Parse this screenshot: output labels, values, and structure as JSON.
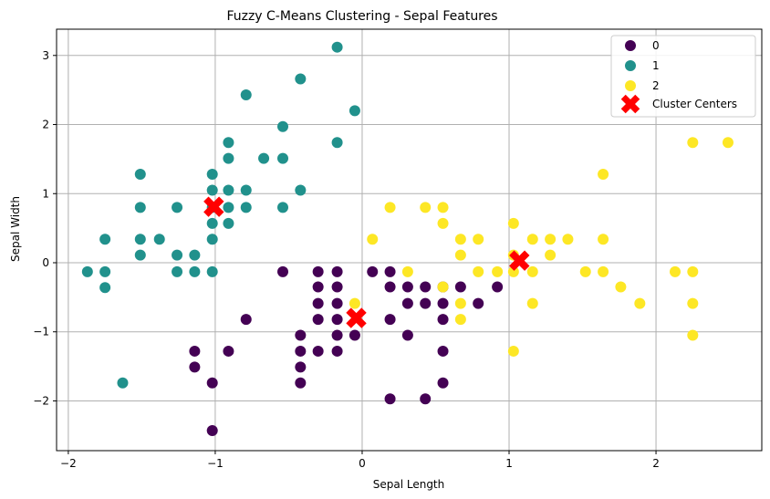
{
  "chart_data": {
    "type": "scatter",
    "title": "Fuzzy C-Means Clustering - Sepal Features",
    "xlabel": "Sepal Length",
    "ylabel": "Sepal Width",
    "xlim": [
      -2.08,
      2.72
    ],
    "ylim": [
      -2.72,
      3.38
    ],
    "x_ticks": [
      -2,
      -1,
      0,
      1,
      2
    ],
    "y_ticks": [
      -2,
      -1,
      0,
      1,
      2,
      3
    ],
    "tick_labels_x": [
      "−2",
      "−1",
      "0",
      "1",
      "2"
    ],
    "tick_labels_y": [
      "−2",
      "−1",
      "0",
      "1",
      "2",
      "3"
    ],
    "grid": true,
    "legend_position": "top-right",
    "series": [
      {
        "name": "0",
        "color": "#440154",
        "points": [
          [
            -0.54,
            -0.13
          ],
          [
            -0.3,
            -0.13
          ],
          [
            -0.17,
            -0.13
          ],
          [
            0.07,
            -0.13
          ],
          [
            0.19,
            -0.13
          ],
          [
            -0.3,
            -0.35
          ],
          [
            -0.17,
            -0.35
          ],
          [
            0.19,
            -0.35
          ],
          [
            0.31,
            -0.35
          ],
          [
            0.43,
            -0.35
          ],
          [
            0.55,
            -0.35
          ],
          [
            0.67,
            -0.35
          ],
          [
            0.92,
            -0.35
          ],
          [
            -0.3,
            -0.59
          ],
          [
            -0.17,
            -0.59
          ],
          [
            0.31,
            -0.59
          ],
          [
            0.43,
            -0.59
          ],
          [
            0.55,
            -0.59
          ],
          [
            0.79,
            -0.59
          ],
          [
            -0.79,
            -0.82
          ],
          [
            -0.3,
            -0.82
          ],
          [
            -0.17,
            -0.82
          ],
          [
            0.19,
            -0.82
          ],
          [
            0.55,
            -0.82
          ],
          [
            -0.42,
            -1.05
          ],
          [
            -0.17,
            -1.05
          ],
          [
            -0.05,
            -1.05
          ],
          [
            0.31,
            -1.05
          ],
          [
            -1.14,
            -1.28
          ],
          [
            -0.91,
            -1.28
          ],
          [
            -0.42,
            -1.28
          ],
          [
            -0.3,
            -1.28
          ],
          [
            -0.17,
            -1.28
          ],
          [
            0.55,
            -1.28
          ],
          [
            -1.14,
            -1.51
          ],
          [
            -0.42,
            -1.51
          ],
          [
            -1.02,
            -1.74
          ],
          [
            -0.42,
            -1.74
          ],
          [
            0.55,
            -1.74
          ],
          [
            0.19,
            -1.97
          ],
          [
            0.43,
            -1.97
          ],
          [
            -1.02,
            -2.43
          ]
        ]
      },
      {
        "name": "1",
        "color": "#21918c",
        "points": [
          [
            -0.17,
            3.12
          ],
          [
            -0.42,
            2.66
          ],
          [
            -0.79,
            2.43
          ],
          [
            -0.05,
            2.2
          ],
          [
            -0.54,
            1.97
          ],
          [
            -0.91,
            1.74
          ],
          [
            -0.17,
            1.74
          ],
          [
            -0.91,
            1.51
          ],
          [
            -0.67,
            1.51
          ],
          [
            -0.54,
            1.51
          ],
          [
            -1.51,
            1.28
          ],
          [
            -1.02,
            1.28
          ],
          [
            -1.02,
            1.05
          ],
          [
            -0.91,
            1.05
          ],
          [
            -0.79,
            1.05
          ],
          [
            -0.42,
            1.05
          ],
          [
            -1.51,
            0.8
          ],
          [
            -1.26,
            0.8
          ],
          [
            -1.02,
            0.8
          ],
          [
            -0.91,
            0.8
          ],
          [
            -0.79,
            0.8
          ],
          [
            -0.54,
            0.8
          ],
          [
            -1.02,
            0.57
          ],
          [
            -0.91,
            0.57
          ],
          [
            -1.75,
            0.34
          ],
          [
            -1.51,
            0.34
          ],
          [
            -1.38,
            0.34
          ],
          [
            -1.02,
            0.34
          ],
          [
            -1.51,
            0.11
          ],
          [
            -1.26,
            0.11
          ],
          [
            -1.14,
            0.11
          ],
          [
            -1.87,
            -0.13
          ],
          [
            -1.75,
            -0.13
          ],
          [
            -1.26,
            -0.13
          ],
          [
            -1.14,
            -0.13
          ],
          [
            -1.02,
            -0.13
          ],
          [
            -1.75,
            -0.36
          ],
          [
            -1.63,
            -1.74
          ]
        ]
      },
      {
        "name": "2",
        "color": "#fde725",
        "points": [
          [
            2.25,
            1.74
          ],
          [
            2.49,
            1.74
          ],
          [
            1.64,
            1.28
          ],
          [
            0.19,
            0.8
          ],
          [
            0.43,
            0.8
          ],
          [
            0.55,
            0.8
          ],
          [
            0.55,
            0.57
          ],
          [
            1.03,
            0.57
          ],
          [
            0.07,
            0.34
          ],
          [
            0.67,
            0.34
          ],
          [
            0.79,
            0.34
          ],
          [
            1.16,
            0.34
          ],
          [
            1.28,
            0.34
          ],
          [
            1.4,
            0.34
          ],
          [
            1.64,
            0.34
          ],
          [
            0.67,
            0.11
          ],
          [
            1.03,
            0.11
          ],
          [
            1.28,
            0.11
          ],
          [
            0.31,
            -0.13
          ],
          [
            0.79,
            -0.13
          ],
          [
            0.92,
            -0.13
          ],
          [
            1.03,
            -0.13
          ],
          [
            1.16,
            -0.13
          ],
          [
            1.52,
            -0.13
          ],
          [
            1.64,
            -0.13
          ],
          [
            2.13,
            -0.13
          ],
          [
            2.25,
            -0.13
          ],
          [
            0.55,
            -0.35
          ],
          [
            1.76,
            -0.35
          ],
          [
            -0.05,
            -0.59
          ],
          [
            0.67,
            -0.59
          ],
          [
            1.16,
            -0.59
          ],
          [
            1.89,
            -0.59
          ],
          [
            2.25,
            -0.59
          ],
          [
            0.67,
            -0.82
          ],
          [
            2.25,
            -1.05
          ],
          [
            1.03,
            -1.28
          ]
        ]
      }
    ],
    "centers": {
      "name": "Cluster Centers",
      "color": "#ff0000",
      "points": [
        [
          -1.01,
          0.81
        ],
        [
          -0.04,
          -0.8
        ],
        [
          1.07,
          0.03
        ]
      ]
    }
  }
}
